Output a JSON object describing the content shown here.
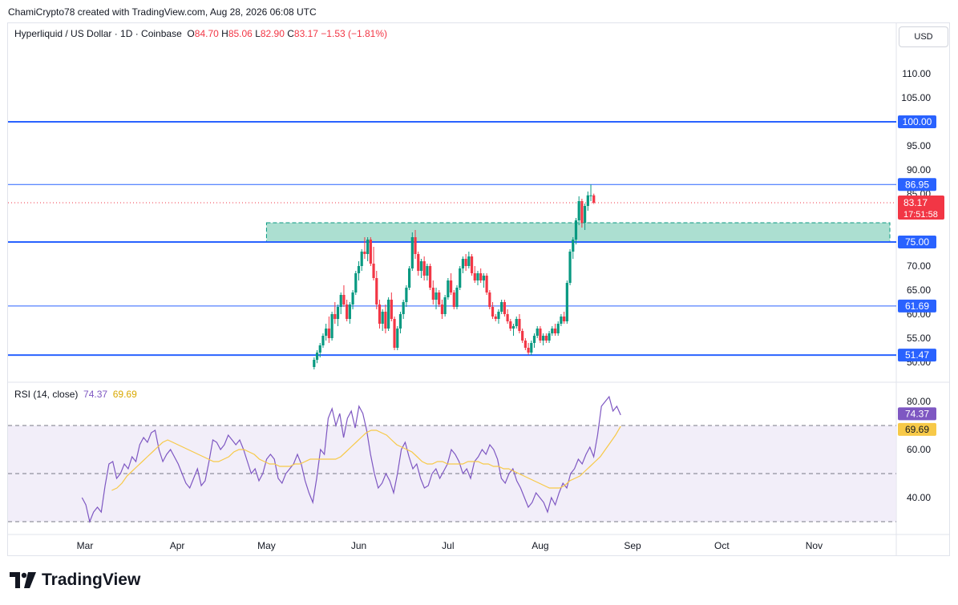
{
  "header": {
    "created_line": "ChamiCrypto78 created with TradingView.com, Aug 28, 2026 06:08 UTC"
  },
  "legend": {
    "title": "Hyperliquid / US Dollar · 1D · Coinbase",
    "o_label": "O",
    "o_value": "84.70",
    "h_label": "H",
    "h_value": "85.06",
    "l_label": "L",
    "l_value": "82.90",
    "c_label": "C",
    "c_value": "83.17",
    "change": "−1.53 (−1.81%)"
  },
  "currency_button": "USD",
  "rsi_legend": {
    "title": "RSI (14, close)",
    "rsi_value": "74.37",
    "ma_value": "69.69"
  },
  "brand": "TradingView",
  "colors": {
    "up": "#089981",
    "down": "#f23645",
    "level_line": "#2962ff",
    "zone_fill": "#9dd9c9",
    "rsi": "#7e57c2",
    "rsi_ma": "#f7c948",
    "rsi_band": "#ede7f6",
    "badge_bg": "#2962ff"
  },
  "chart_data": [
    {
      "type": "candlestick",
      "x_axis_labels": [
        "Mar",
        "Apr",
        "May",
        "Jun",
        "Jul",
        "Aug",
        "Sep",
        "Oct",
        "Nov"
      ],
      "y_axis_ticks": [
        "110.00",
        "105.00",
        "95.00",
        "90.00",
        "85.00",
        "70.00",
        "65.00",
        "60.00",
        "55.00",
        "50.00"
      ],
      "ylim": [
        49,
        112
      ],
      "horizontal_levels": [
        {
          "value": 100.0,
          "label": "100.00"
        },
        {
          "value": 86.95,
          "label": "86.95"
        },
        {
          "value": 75.0,
          "label": "75.00"
        },
        {
          "value": 61.69,
          "label": "61.69"
        },
        {
          "value": 51.47,
          "label": "51.47"
        }
      ],
      "zone": {
        "from_date": "2026-05-01",
        "to_date": "2026-11-29",
        "low": 75.0,
        "high": 79.0
      },
      "last_price": {
        "value": 83.17,
        "label": "83.17",
        "countdown": "17:51:58"
      },
      "candles_start_date": "2026-05-17",
      "ohlc": [
        [
          49.0,
          51.0,
          48.5,
          50.5
        ],
        [
          50.5,
          52.5,
          49.8,
          52.0
        ],
        [
          52.0,
          54.0,
          51.0,
          53.5
        ],
        [
          53.5,
          56.0,
          53.0,
          55.5
        ],
        [
          55.5,
          58.0,
          54.5,
          57.0
        ],
        [
          57.0,
          59.5,
          54.0,
          55.0
        ],
        [
          55.0,
          60.5,
          54.5,
          60.0
        ],
        [
          60.0,
          62.5,
          58.0,
          59.0
        ],
        [
          59.0,
          62.0,
          57.5,
          61.5
        ],
        [
          61.5,
          64.5,
          60.0,
          64.0
        ],
        [
          64.0,
          66.0,
          61.5,
          62.0
        ],
        [
          62.0,
          63.0,
          58.5,
          59.0
        ],
        [
          59.0,
          62.5,
          58.0,
          62.0
        ],
        [
          62.0,
          65.0,
          61.0,
          64.5
        ],
        [
          64.5,
          69.0,
          64.0,
          68.5
        ],
        [
          68.5,
          71.0,
          67.0,
          70.0
        ],
        [
          70.0,
          73.5,
          69.0,
          73.0
        ],
        [
          73.0,
          76.0,
          71.5,
          72.5
        ],
        [
          72.5,
          76.0,
          71.0,
          75.5
        ],
        [
          75.5,
          76.0,
          70.0,
          70.5
        ],
        [
          70.5,
          74.0,
          67.0,
          67.5
        ],
        [
          67.5,
          69.0,
          61.0,
          62.0
        ],
        [
          62.0,
          63.0,
          57.0,
          58.0
        ],
        [
          58.0,
          61.0,
          56.5,
          60.5
        ],
        [
          60.5,
          62.0,
          56.0,
          57.0
        ],
        [
          57.0,
          63.5,
          56.5,
          63.0
        ],
        [
          63.0,
          64.5,
          58.5,
          59.0
        ],
        [
          59.0,
          59.5,
          52.5,
          53.0
        ],
        [
          53.0,
          57.5,
          52.5,
          57.0
        ],
        [
          57.0,
          60.5,
          56.0,
          60.0
        ],
        [
          60.0,
          63.0,
          59.0,
          62.5
        ],
        [
          62.5,
          66.0,
          61.5,
          65.5
        ],
        [
          65.5,
          70.0,
          65.0,
          69.5
        ],
        [
          69.5,
          77.0,
          69.0,
          76.0
        ],
        [
          76.0,
          77.5,
          71.5,
          72.5
        ],
        [
          72.5,
          73.0,
          68.0,
          69.0
        ],
        [
          69.0,
          71.5,
          67.5,
          71.0
        ],
        [
          71.0,
          72.0,
          67.0,
          68.0
        ],
        [
          68.0,
          70.5,
          67.0,
          70.0
        ],
        [
          70.0,
          70.5,
          65.0,
          65.5
        ],
        [
          65.5,
          67.0,
          62.0,
          63.0
        ],
        [
          63.0,
          65.5,
          61.0,
          64.5
        ],
        [
          64.5,
          65.0,
          61.5,
          62.0
        ],
        [
          62.0,
          63.0,
          59.0,
          60.0
        ],
        [
          60.0,
          64.0,
          59.5,
          63.5
        ],
        [
          63.5,
          67.5,
          63.0,
          67.0
        ],
        [
          67.0,
          68.5,
          64.0,
          64.5
        ],
        [
          64.5,
          65.0,
          61.0,
          61.5
        ],
        [
          61.5,
          66.0,
          61.0,
          65.5
        ],
        [
          65.5,
          70.0,
          65.0,
          69.5
        ],
        [
          69.5,
          72.0,
          68.5,
          71.5
        ],
        [
          71.5,
          72.5,
          69.0,
          70.0
        ],
        [
          70.0,
          73.0,
          69.5,
          72.0
        ],
        [
          72.0,
          72.5,
          68.0,
          68.5
        ],
        [
          68.5,
          70.0,
          66.5,
          67.0
        ],
        [
          67.0,
          69.0,
          66.0,
          68.5
        ],
        [
          68.5,
          69.5,
          66.5,
          67.0
        ],
        [
          67.0,
          68.5,
          65.5,
          68.0
        ],
        [
          68.0,
          68.5,
          64.0,
          64.5
        ],
        [
          64.5,
          65.0,
          61.0,
          61.5
        ],
        [
          61.5,
          62.5,
          59.0,
          59.5
        ],
        [
          59.5,
          60.0,
          58.5,
          59.0
        ],
        [
          59.0,
          61.0,
          58.0,
          60.5
        ],
        [
          60.5,
          63.0,
          60.0,
          62.5
        ],
        [
          62.5,
          63.0,
          59.5,
          60.0
        ],
        [
          60.0,
          61.0,
          58.0,
          58.5
        ],
        [
          58.5,
          59.0,
          56.5,
          57.0
        ],
        [
          57.0,
          58.0,
          55.5,
          57.5
        ],
        [
          57.5,
          59.5,
          57.0,
          59.0
        ],
        [
          59.0,
          60.0,
          56.0,
          56.5
        ],
        [
          56.5,
          57.0,
          54.0,
          54.5
        ],
        [
          54.5,
          55.0,
          52.5,
          53.0
        ],
        [
          53.0,
          54.0,
          51.5,
          52.0
        ],
        [
          52.0,
          54.5,
          51.5,
          54.0
        ],
        [
          54.0,
          56.0,
          53.0,
          55.5
        ],
        [
          55.5,
          57.5,
          55.0,
          57.0
        ],
        [
          57.0,
          57.5,
          54.0,
          54.5
        ],
        [
          54.5,
          56.0,
          53.5,
          55.5
        ],
        [
          55.5,
          56.0,
          54.0,
          54.5
        ],
        [
          54.5,
          56.5,
          54.0,
          56.0
        ],
        [
          56.0,
          57.5,
          55.5,
          57.0
        ],
        [
          57.0,
          58.0,
          55.5,
          56.0
        ],
        [
          56.0,
          58.5,
          55.5,
          58.0
        ],
        [
          58.0,
          60.0,
          57.5,
          59.5
        ],
        [
          59.5,
          60.5,
          58.0,
          58.5
        ],
        [
          58.5,
          67.0,
          58.0,
          66.5
        ],
        [
          66.5,
          73.5,
          66.0,
          73.0
        ],
        [
          73.0,
          76.0,
          71.5,
          75.5
        ],
        [
          75.5,
          80.0,
          74.5,
          79.5
        ],
        [
          79.5,
          84.5,
          78.5,
          83.5
        ],
        [
          83.5,
          84.0,
          78.0,
          79.0
        ],
        [
          79.0,
          83.0,
          77.5,
          82.5
        ],
        [
          82.5,
          85.5,
          81.5,
          84.7
        ],
        [
          84.7,
          86.95,
          83.5,
          84.7
        ],
        [
          84.7,
          85.06,
          82.9,
          83.17
        ]
      ]
    },
    {
      "type": "line",
      "title": "RSI (14, close)",
      "y_axis_ticks": [
        "80.00",
        "60.00",
        "40.00"
      ],
      "ylim": [
        27,
        86
      ],
      "bands": {
        "upper": 70,
        "middle": 50,
        "lower": 30
      },
      "x_start_date": "2026-02-28",
      "x_end_date": "2026-08-28",
      "series": [
        {
          "name": "RSI",
          "current": 74.37,
          "values": [
            40,
            37,
            30,
            34,
            36,
            34,
            45,
            54,
            55,
            48,
            50,
            54,
            52,
            57,
            55,
            62,
            65,
            63,
            67,
            68,
            60,
            55,
            58,
            60,
            57,
            54,
            50,
            46,
            44,
            48,
            52,
            45,
            47,
            55,
            64,
            63,
            60,
            62,
            66,
            64,
            62,
            64,
            60,
            55,
            50,
            52,
            47,
            50,
            56,
            58,
            56,
            48,
            46,
            50,
            52,
            54,
            58,
            54,
            47,
            42,
            38,
            48,
            60,
            58,
            73,
            77,
            70,
            75,
            65,
            73,
            76,
            69,
            78,
            75,
            68,
            58,
            50,
            44,
            46,
            50,
            47,
            42,
            50,
            60,
            63,
            57,
            52,
            54,
            48,
            44,
            45,
            50,
            52,
            48,
            51,
            54,
            60,
            58,
            55,
            50,
            52,
            48,
            55,
            57,
            60,
            58,
            62,
            60,
            56,
            48,
            46,
            50,
            52,
            47,
            44,
            40,
            36,
            38,
            42,
            40,
            38,
            34,
            40,
            37,
            42,
            46,
            44,
            50,
            52,
            56,
            54,
            58,
            61,
            57,
            66,
            78,
            80,
            82,
            76,
            78,
            74.37
          ]
        },
        {
          "name": "RSI-based MA",
          "current": 69.69,
          "values": [
            43,
            44,
            46,
            49,
            51,
            53,
            55,
            57,
            59,
            61,
            63,
            64,
            63,
            62,
            61,
            60,
            59,
            58,
            57,
            56,
            55,
            55,
            56,
            57,
            59,
            60,
            60,
            59,
            58,
            56,
            55,
            54,
            54,
            53,
            53,
            53,
            54,
            54,
            55,
            56,
            56,
            56,
            56,
            56,
            56,
            57,
            59,
            61,
            63,
            65,
            67,
            68,
            68,
            67,
            66,
            64,
            62,
            61,
            60,
            59,
            57,
            55,
            54,
            54,
            55,
            55,
            54,
            54,
            54,
            54,
            55,
            55,
            55,
            54,
            54,
            53,
            53,
            52,
            52,
            51,
            50,
            49,
            48,
            47,
            46,
            45,
            44,
            44,
            44,
            45,
            47,
            48,
            49,
            51,
            53,
            55,
            57,
            60,
            63,
            66,
            69.69
          ]
        }
      ]
    }
  ],
  "x_labels": [
    "Mar",
    "Apr",
    "May",
    "Jun",
    "Jul",
    "Aug",
    "Sep",
    "Oct",
    "Nov"
  ],
  "price_badges": [
    "100.00",
    "86.95",
    "75.00",
    "61.69",
    "51.47"
  ],
  "last_badge": {
    "price": "83.17",
    "countdown": "17:51:58"
  },
  "rsi_badges": {
    "rsi": "74.37",
    "ma": "69.69"
  }
}
